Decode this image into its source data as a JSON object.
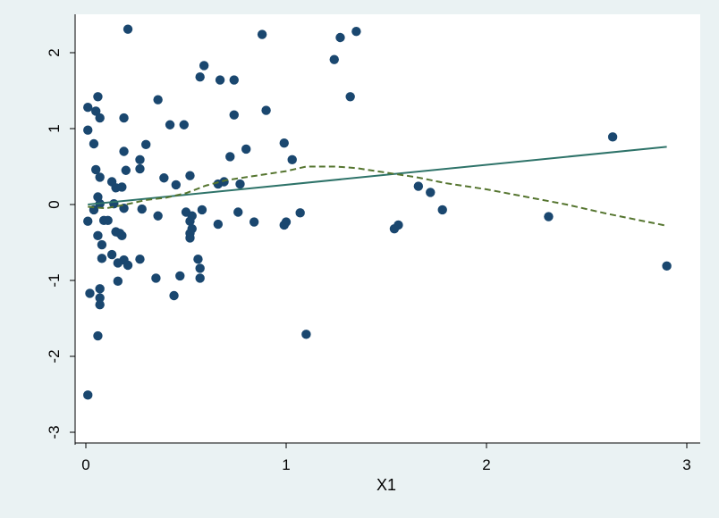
{
  "chart_data": {
    "type": "scatter",
    "title": "",
    "xlabel": "X1",
    "ylabel": "",
    "xlim": [
      -0.05,
      3.0
    ],
    "ylim": [
      -3.08,
      2.42
    ],
    "x_ticks": [
      0,
      1,
      2,
      3
    ],
    "y_ticks": [
      -3,
      -2,
      -1,
      0,
      1,
      2
    ],
    "x_tick_labels": [
      "0",
      "1",
      "2",
      "3"
    ],
    "y_tick_labels": [
      "-3",
      "-2",
      "-1",
      "0",
      "1",
      "2"
    ],
    "grid": false,
    "colors": {
      "background": "#eaf2f3",
      "plot_area": "#ffffff",
      "points": "#1a476f",
      "fit_line": "#2e7369",
      "smooth_line": "#55752f"
    },
    "series": [
      {
        "kind": "points",
        "points": [
          [
            0.21,
            2.31
          ],
          [
            0.88,
            2.24
          ],
          [
            1.27,
            2.2
          ],
          [
            1.35,
            2.28
          ],
          [
            1.24,
            1.91
          ],
          [
            0.59,
            1.83
          ],
          [
            0.57,
            1.68
          ],
          [
            0.67,
            1.64
          ],
          [
            0.74,
            1.64
          ],
          [
            0.06,
            1.42
          ],
          [
            1.32,
            1.42
          ],
          [
            0.36,
            1.38
          ],
          [
            0.01,
            1.28
          ],
          [
            0.05,
            1.23
          ],
          [
            0.9,
            1.24
          ],
          [
            0.74,
            1.18
          ],
          [
            0.07,
            1.14
          ],
          [
            0.19,
            1.14
          ],
          [
            0.42,
            1.05
          ],
          [
            0.49,
            1.05
          ],
          [
            0.01,
            0.98
          ],
          [
            0.04,
            0.8
          ],
          [
            0.3,
            0.79
          ],
          [
            0.99,
            0.81
          ],
          [
            0.8,
            0.73
          ],
          [
            0.19,
            0.7
          ],
          [
            0.72,
            0.63
          ],
          [
            1.03,
            0.59
          ],
          [
            0.27,
            0.59
          ],
          [
            0.05,
            0.46
          ],
          [
            0.2,
            0.45
          ],
          [
            0.27,
            0.47
          ],
          [
            0.07,
            0.36
          ],
          [
            0.39,
            0.35
          ],
          [
            0.52,
            0.38
          ],
          [
            0.13,
            0.3
          ],
          [
            0.45,
            0.26
          ],
          [
            0.66,
            0.27
          ],
          [
            0.69,
            0.3
          ],
          [
            0.77,
            0.27
          ],
          [
            0.15,
            0.22
          ],
          [
            0.18,
            0.23
          ],
          [
            0.06,
            0.1
          ],
          [
            0.07,
            0.01
          ],
          [
            0.14,
            0.01
          ],
          [
            0.04,
            -0.07
          ],
          [
            0.19,
            -0.05
          ],
          [
            0.28,
            -0.06
          ],
          [
            0.58,
            -0.07
          ],
          [
            0.5,
            -0.1
          ],
          [
            0.36,
            -0.15
          ],
          [
            0.76,
            -0.1
          ],
          [
            0.53,
            -0.15
          ],
          [
            0.09,
            -0.21
          ],
          [
            0.11,
            -0.21
          ],
          [
            0.01,
            -0.22
          ],
          [
            0.52,
            -0.22
          ],
          [
            0.84,
            -0.23
          ],
          [
            1.0,
            -0.23
          ],
          [
            0.99,
            -0.27
          ],
          [
            0.66,
            -0.26
          ],
          [
            1.07,
            -0.11
          ],
          [
            1.56,
            -0.27
          ],
          [
            1.54,
            -0.32
          ],
          [
            0.53,
            -0.32
          ],
          [
            0.52,
            -0.38
          ],
          [
            0.52,
            -0.44
          ],
          [
            0.15,
            -0.36
          ],
          [
            0.17,
            -0.38
          ],
          [
            0.18,
            -0.41
          ],
          [
            0.06,
            -0.41
          ],
          [
            0.08,
            -0.53
          ],
          [
            0.13,
            -0.66
          ],
          [
            0.08,
            -0.71
          ],
          [
            0.19,
            -0.73
          ],
          [
            0.27,
            -0.72
          ],
          [
            0.56,
            -0.72
          ],
          [
            0.16,
            -0.77
          ],
          [
            0.21,
            -0.8
          ],
          [
            0.57,
            -0.84
          ],
          [
            0.47,
            -0.94
          ],
          [
            0.35,
            -0.97
          ],
          [
            0.57,
            -0.97
          ],
          [
            0.16,
            -1.01
          ],
          [
            0.07,
            -1.11
          ],
          [
            0.02,
            -1.17
          ],
          [
            0.44,
            -1.2
          ],
          [
            0.07,
            -1.23
          ],
          [
            0.07,
            -1.32
          ],
          [
            0.06,
            -1.73
          ],
          [
            1.1,
            -1.71
          ],
          [
            0.01,
            -2.51
          ],
          [
            1.66,
            0.24
          ],
          [
            1.72,
            0.16
          ],
          [
            1.78,
            -0.07
          ],
          [
            2.31,
            -0.16
          ],
          [
            2.63,
            0.89
          ],
          [
            2.9,
            -0.81
          ]
        ]
      },
      {
        "kind": "fit-line",
        "points": [
          [
            0.01,
            0.0
          ],
          [
            2.9,
            0.76
          ]
        ]
      },
      {
        "kind": "smooth-line",
        "points": [
          [
            0.01,
            -0.03
          ],
          [
            0.1,
            -0.05
          ],
          [
            0.2,
            0.0
          ],
          [
            0.3,
            0.06
          ],
          [
            0.4,
            0.09
          ],
          [
            0.5,
            0.15
          ],
          [
            0.6,
            0.25
          ],
          [
            0.7,
            0.32
          ],
          [
            0.85,
            0.38
          ],
          [
            1.0,
            0.44
          ],
          [
            1.1,
            0.5
          ],
          [
            1.25,
            0.5
          ],
          [
            1.35,
            0.48
          ],
          [
            1.5,
            0.42
          ],
          [
            1.65,
            0.36
          ],
          [
            1.8,
            0.28
          ],
          [
            2.0,
            0.2
          ],
          [
            2.2,
            0.1
          ],
          [
            2.4,
            0.0
          ],
          [
            2.6,
            -0.12
          ],
          [
            2.9,
            -0.28
          ]
        ]
      }
    ]
  }
}
